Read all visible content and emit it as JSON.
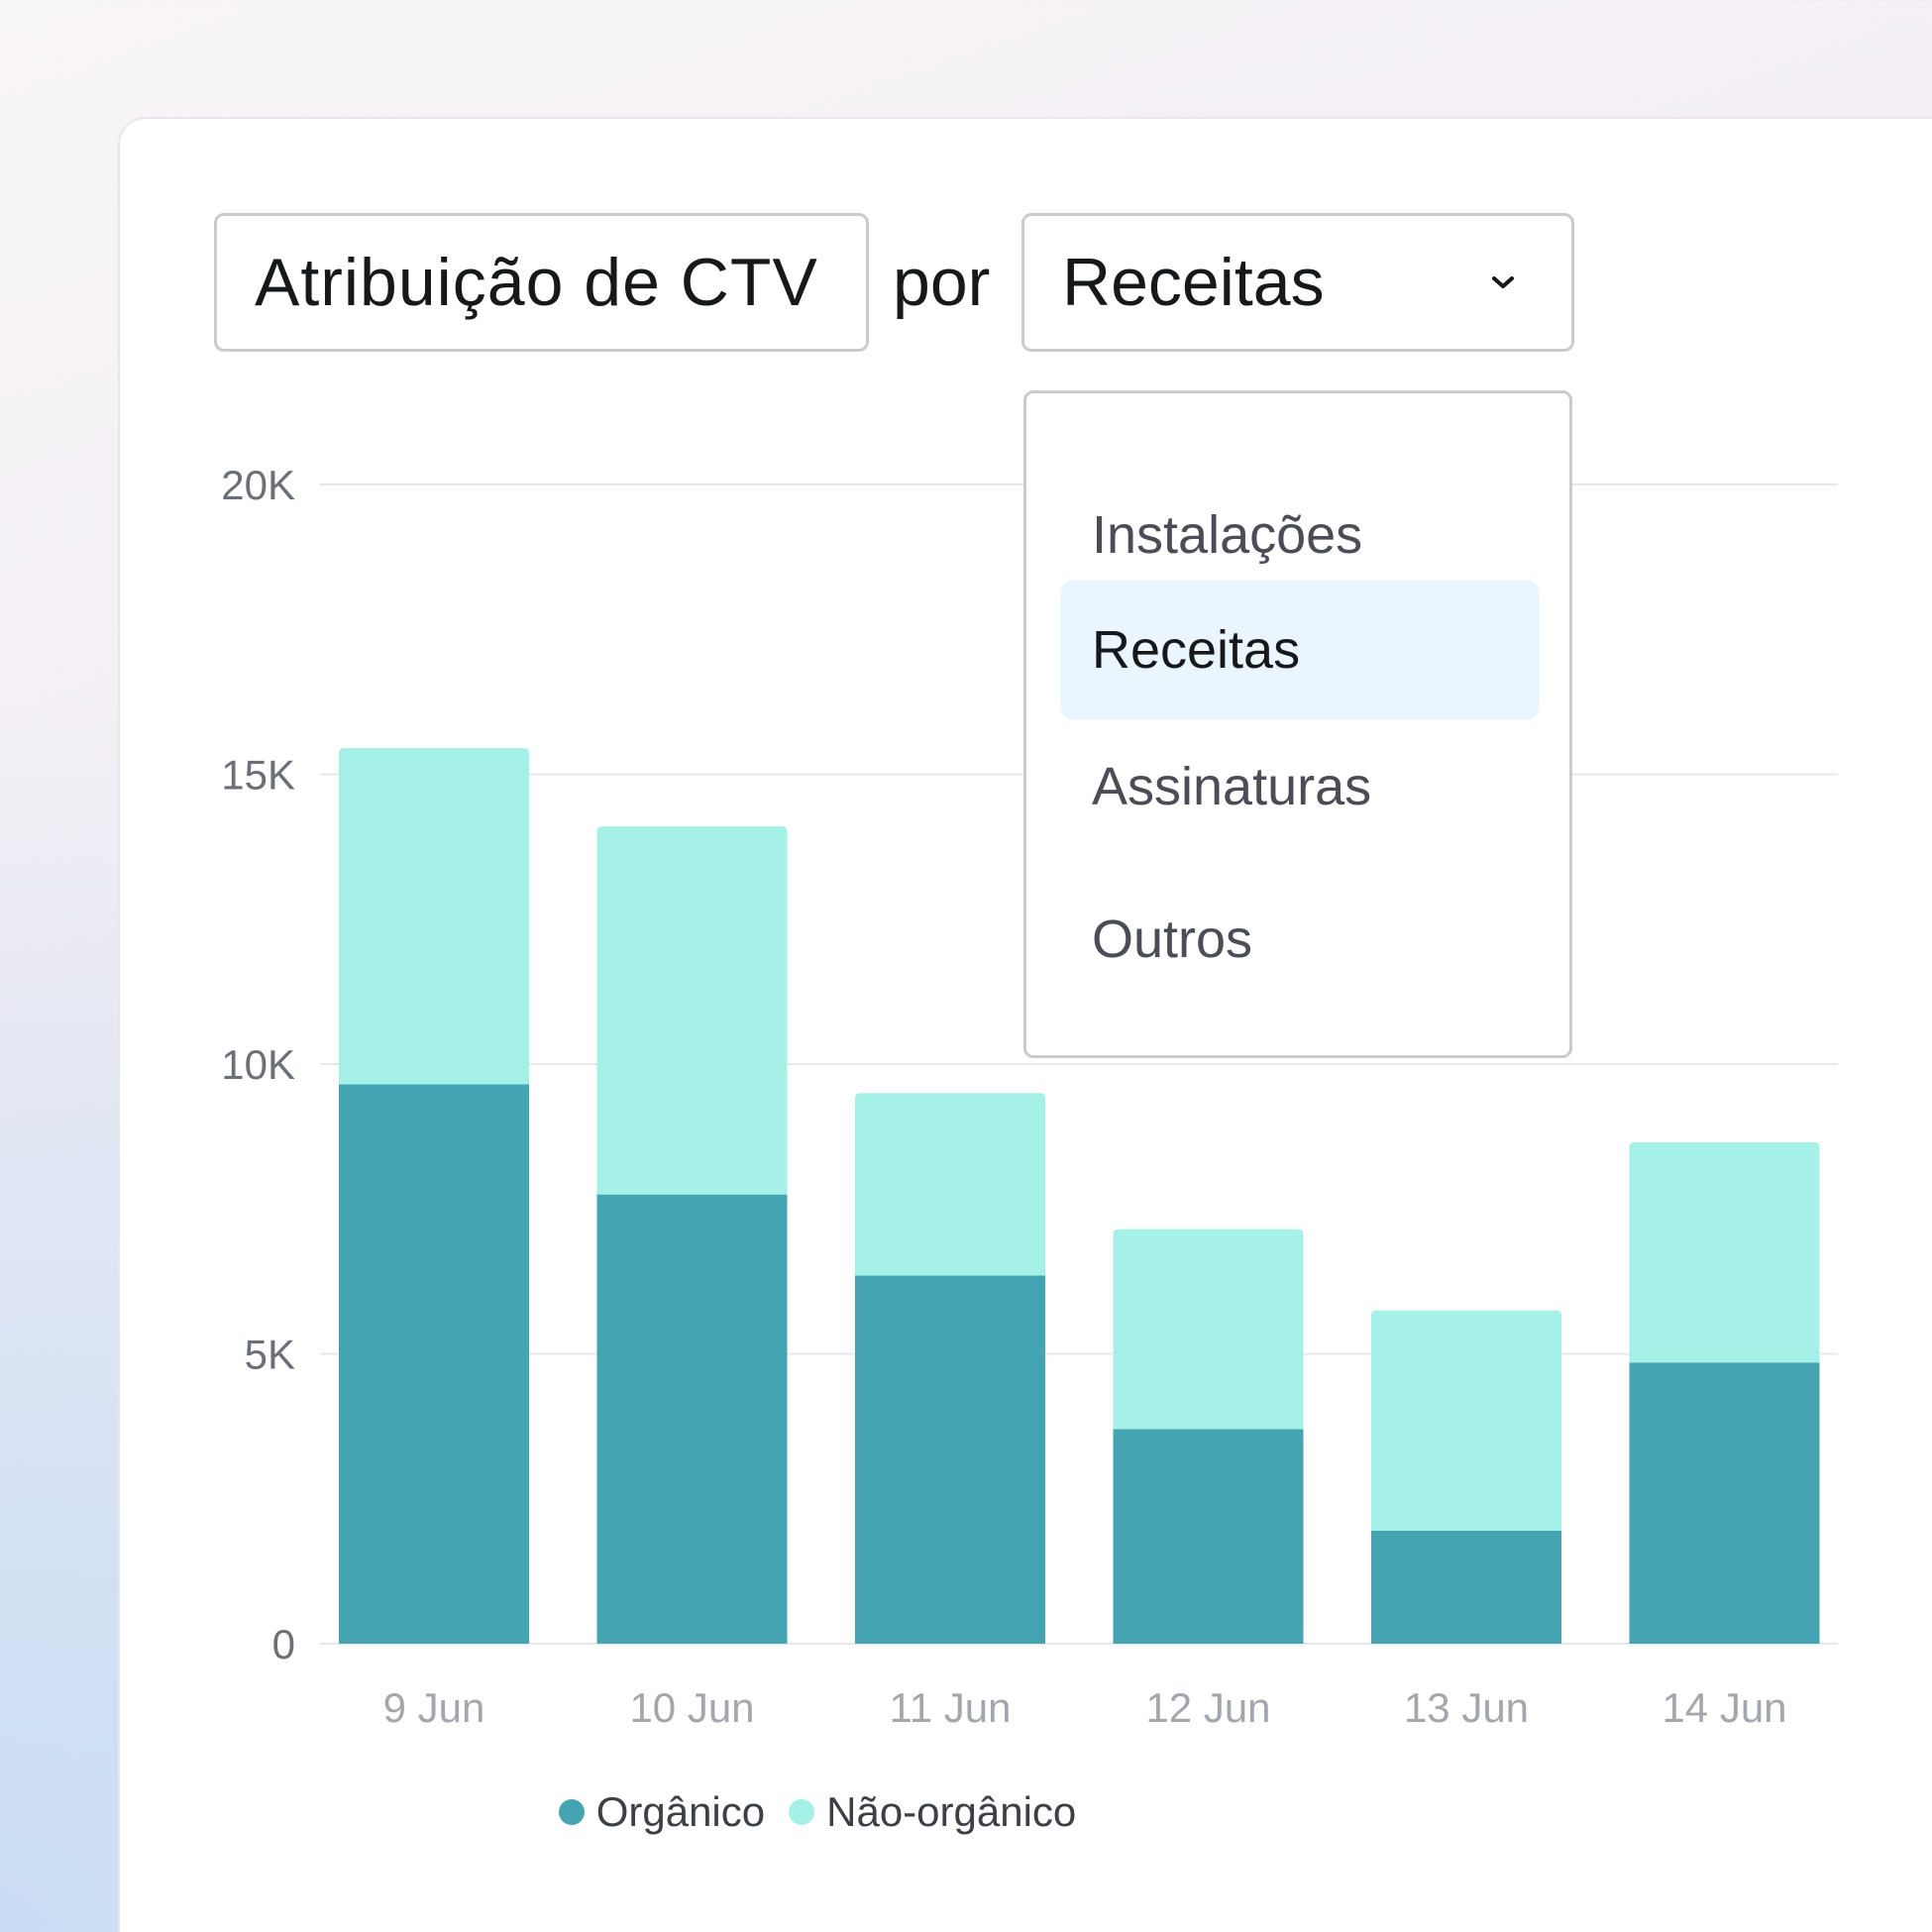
{
  "header": {
    "title": "Atribuição de CTV",
    "by_label": "por",
    "metric_select": {
      "value": "Receitas",
      "options": [
        {
          "label": "Instalações",
          "selected": false
        },
        {
          "label": "Receitas",
          "selected": true
        },
        {
          "label": "Assinaturas",
          "selected": false
        },
        {
          "label": "Outros",
          "selected": false
        }
      ]
    }
  },
  "chart_data": {
    "type": "bar",
    "stacked": true,
    "categories": [
      "9 Jun",
      "10 Jun",
      "11 Jun",
      "12 Jun",
      "13 Jun",
      "14 Jun"
    ],
    "series": [
      {
        "name": "Orgânico",
        "color": "#45a4b2",
        "values": [
          9650,
          7750,
          6350,
          3700,
          1950,
          4850
        ]
      },
      {
        "name": "Não-orgânico",
        "color": "#a5f0e7",
        "values": [
          5800,
          6350,
          3150,
          3450,
          3800,
          3800
        ]
      }
    ],
    "ylim": [
      0,
      20000
    ],
    "yticks": [
      {
        "value": 0,
        "label": "0"
      },
      {
        "value": 5000,
        "label": "5K"
      },
      {
        "value": 10000,
        "label": "10K"
      },
      {
        "value": 15000,
        "label": "15K"
      },
      {
        "value": 20000,
        "label": "20K"
      }
    ],
    "grid": true,
    "legend_position": "bottom-center"
  }
}
